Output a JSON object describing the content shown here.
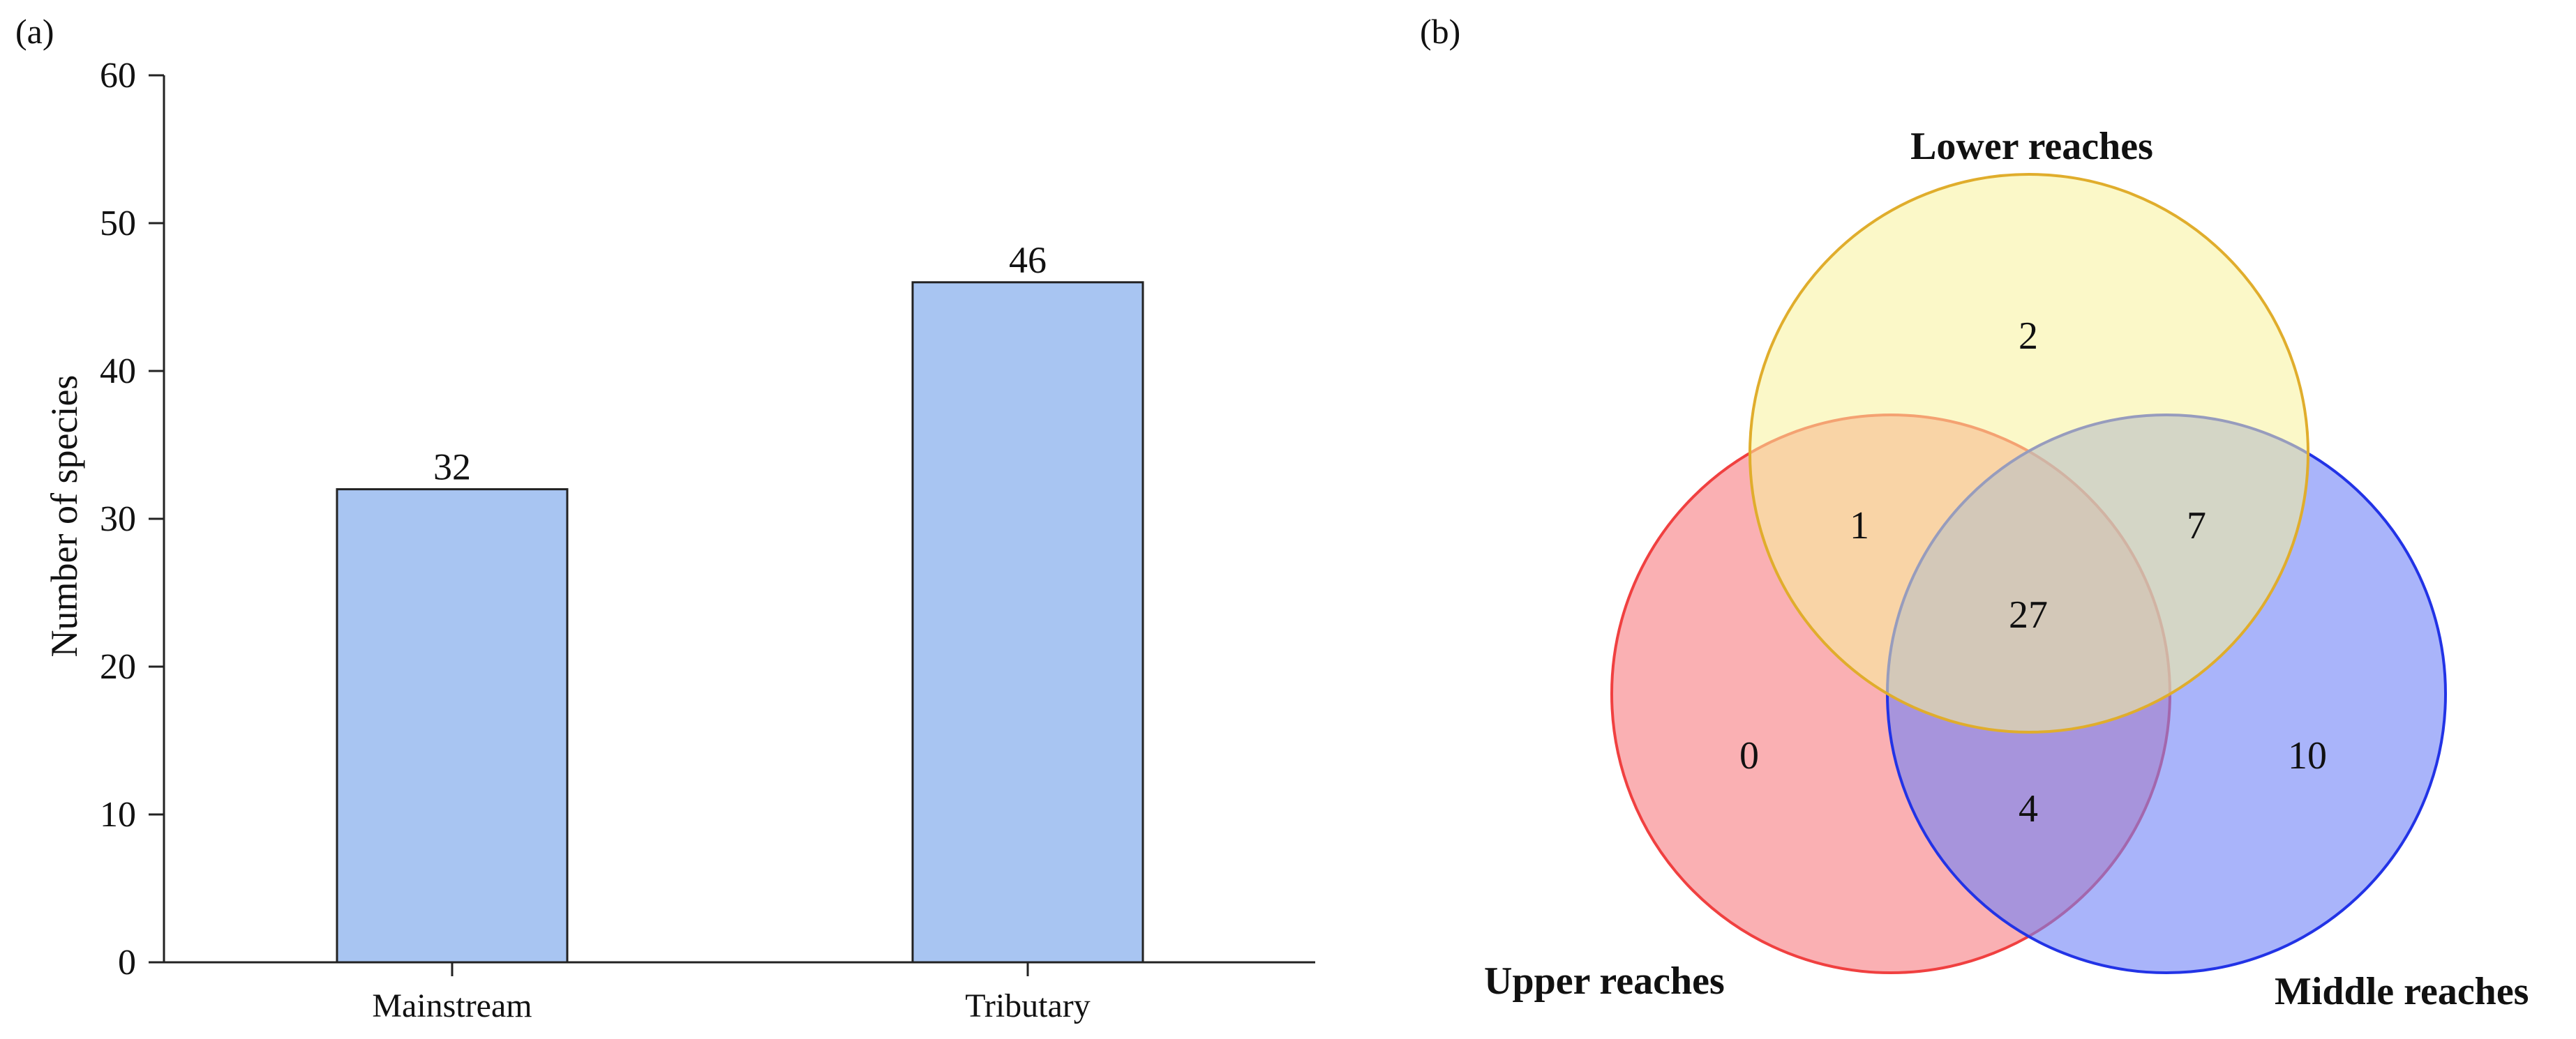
{
  "panels": {
    "a": "(a)",
    "b": "(b)"
  },
  "chart_data": [
    {
      "type": "bar",
      "categories": [
        "Mainstream",
        "Tributary"
      ],
      "values": [
        32,
        46
      ],
      "data_labels": [
        "32",
        "46"
      ],
      "ylabel": "Number of species",
      "xlabel": "",
      "ylim": [
        0,
        60
      ],
      "yticks": [
        0,
        10,
        20,
        30,
        40,
        50,
        60
      ],
      "grid": false,
      "colors": {
        "bar_fill": "#a8c5f2",
        "bar_stroke": "#222222"
      }
    },
    {
      "type": "venn",
      "sets": [
        {
          "name": "Lower reaches",
          "color": "#f8f39a",
          "stroke": "#e0ad2c"
        },
        {
          "name": "Upper reaches",
          "color": "#f77c80",
          "stroke": "#f04040"
        },
        {
          "name": "Middle reaches",
          "color": "#6f82f7",
          "stroke": "#2233e6"
        }
      ],
      "regions": {
        "lower_only": 2,
        "upper_only": 0,
        "middle_only": 10,
        "lower_upper": 1,
        "lower_middle": 7,
        "upper_middle": 4,
        "all_three": 27
      }
    }
  ]
}
